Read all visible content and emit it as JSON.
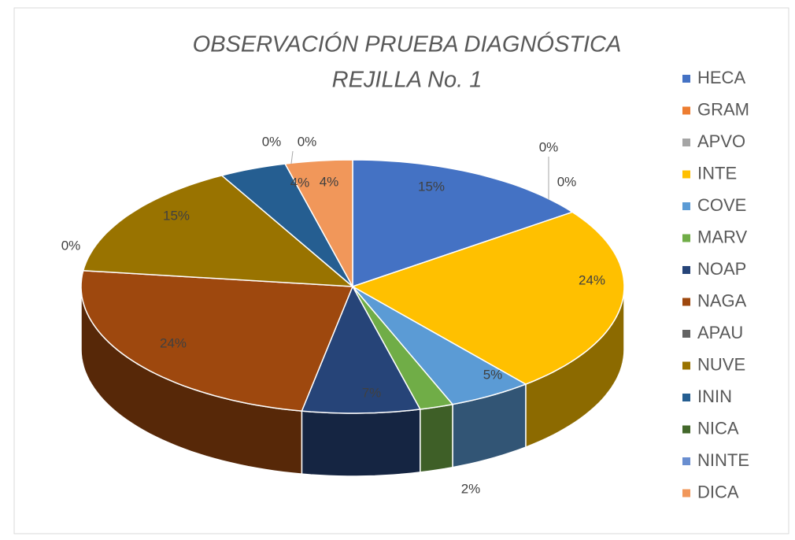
{
  "chart_data": {
    "type": "pie",
    "title": [
      "OBSERVACIÓN PRUEBA DIAGNÓSTICA",
      "REJILLA No. 1"
    ],
    "categories": [
      "HECA",
      "GRAM",
      "APVO",
      "INTE",
      "COVE",
      "MARV",
      "NOAP",
      "NAGA",
      "APAU",
      "NUVE",
      "ININ",
      "NICA",
      "NINTE",
      "DICA"
    ],
    "values": [
      15,
      0,
      0,
      24,
      5,
      2,
      7,
      24,
      0,
      15,
      4,
      0,
      0,
      4
    ],
    "value_labels": [
      "15%",
      "0%",
      "0%",
      "24%",
      "5%",
      "2%",
      "7%",
      "24%",
      "0%",
      "15%",
      "4%",
      "0%",
      "0%",
      "4%"
    ],
    "colors": [
      "#4472c4",
      "#ed7d31",
      "#a5a5a5",
      "#ffc000",
      "#5b9bd5",
      "#70ad47",
      "#264478",
      "#9e480e",
      "#636363",
      "#997300",
      "#255e91",
      "#43682b",
      "#698ed0",
      "#f1975a"
    ],
    "legend": "right"
  }
}
